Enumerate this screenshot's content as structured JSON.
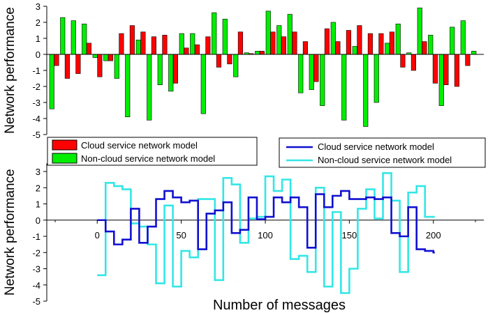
{
  "chart_data": [
    {
      "type": "bar",
      "title": "",
      "ylabel": "Network performance",
      "xlabel": "",
      "ylim": [
        -5,
        3
      ],
      "yticks": [
        "-5",
        "-4",
        "-3",
        "-2",
        "-1",
        "0",
        "1",
        "2",
        "3"
      ],
      "xticks": [],
      "legend_position": "bottom-left",
      "series": [
        {
          "name": "Cloud service network model",
          "color": "#ff0000",
          "values": [
            -0.7,
            -1.5,
            -1.2,
            0.7,
            -1.4,
            -0.4,
            1.3,
            1.8,
            1.4,
            1.1,
            1.2,
            -1.8,
            0.4,
            0.6,
            1.1,
            -0.8,
            -0.6,
            1.4,
            0.05,
            0.2,
            1.4,
            1.1,
            1.4,
            0.8,
            -1.7,
            1.6,
            0.8,
            1.5,
            1.8,
            1.3,
            1.3,
            1.4,
            -0.8,
            -1.0,
            0.8,
            -1.8,
            -1.9,
            -2.0,
            -0.7
          ]
        },
        {
          "name": "Non-cloud service network model",
          "color": "#00ee00",
          "values": [
            -3.4,
            2.3,
            2.1,
            1.9,
            -0.2,
            -0.4,
            -1.5,
            -3.9,
            0.9,
            -4.1,
            -1.9,
            -2.3,
            1.3,
            1.3,
            -3.7,
            2.6,
            2.2,
            -1.4,
            0.1,
            0.2,
            2.7,
            1.8,
            2.5,
            -2.4,
            -2.2,
            -3.2,
            2.0,
            -4.1,
            0.5,
            -4.5,
            -3.0,
            0.7,
            1.9,
            0.1,
            2.9,
            1.2,
            -3.2,
            1.7,
            2.1,
            0.2
          ]
        }
      ]
    },
    {
      "type": "line",
      "title": "",
      "ylabel": "Network performance",
      "xlabel": "Number of messages",
      "xlim": [
        -30,
        230
      ],
      "ylim": [
        -5,
        3
      ],
      "xticks": [
        "0",
        "50",
        "100",
        "150",
        "200"
      ],
      "yticks": [
        "-5",
        "-4",
        "-3",
        "-2",
        "-1",
        "0",
        "1",
        "2",
        "3"
      ],
      "legend_position": "top-right",
      "step": true,
      "series": [
        {
          "name": "Cloud service network model",
          "color": "#1010d0",
          "x": [
            0,
            5,
            10,
            15,
            20,
            25,
            30,
            35,
            40,
            45,
            50,
            55,
            60,
            65,
            70,
            75,
            80,
            85,
            90,
            95,
            100,
            105,
            110,
            115,
            120,
            125,
            130,
            135,
            140,
            145,
            150,
            155,
            160,
            165,
            170,
            175,
            180,
            185,
            190,
            195,
            200
          ],
          "y": [
            0,
            -0.7,
            -1.5,
            -1.2,
            0.7,
            -1.4,
            -0.4,
            1.3,
            1.8,
            1.4,
            1.1,
            1.2,
            -1.8,
            0.4,
            0.6,
            1.1,
            -0.8,
            -0.6,
            1.4,
            0.05,
            0.2,
            1.4,
            1.1,
            1.4,
            0.8,
            -1.7,
            1.6,
            0.8,
            1.5,
            1.8,
            1.3,
            1.3,
            1.4,
            1.3,
            1.4,
            -0.8,
            -1.0,
            0.8,
            -1.8,
            -1.9,
            -2.0
          ]
        },
        {
          "name": "Non-cloud service network model",
          "color": "#33e6e6",
          "x": [
            0,
            5,
            10,
            15,
            20,
            25,
            30,
            35,
            40,
            45,
            50,
            55,
            60,
            65,
            70,
            75,
            80,
            85,
            90,
            95,
            100,
            105,
            110,
            115,
            120,
            125,
            130,
            135,
            140,
            145,
            150,
            155,
            160,
            165,
            170,
            175,
            180,
            185,
            190,
            195,
            200
          ],
          "y": [
            -3.4,
            2.3,
            2.1,
            1.9,
            -0.2,
            -0.4,
            -1.5,
            -3.9,
            0.9,
            -4.1,
            -1.9,
            -2.3,
            1.3,
            1.3,
            -3.7,
            2.6,
            2.2,
            -1.4,
            0.1,
            0.2,
            2.7,
            1.8,
            2.5,
            -2.4,
            -2.2,
            -3.2,
            2.0,
            -4.1,
            0.5,
            -4.5,
            -3.0,
            0.7,
            1.9,
            0.1,
            2.9,
            1.2,
            -3.2,
            1.7,
            2.1,
            0.2,
            0.2
          ]
        }
      ]
    }
  ]
}
